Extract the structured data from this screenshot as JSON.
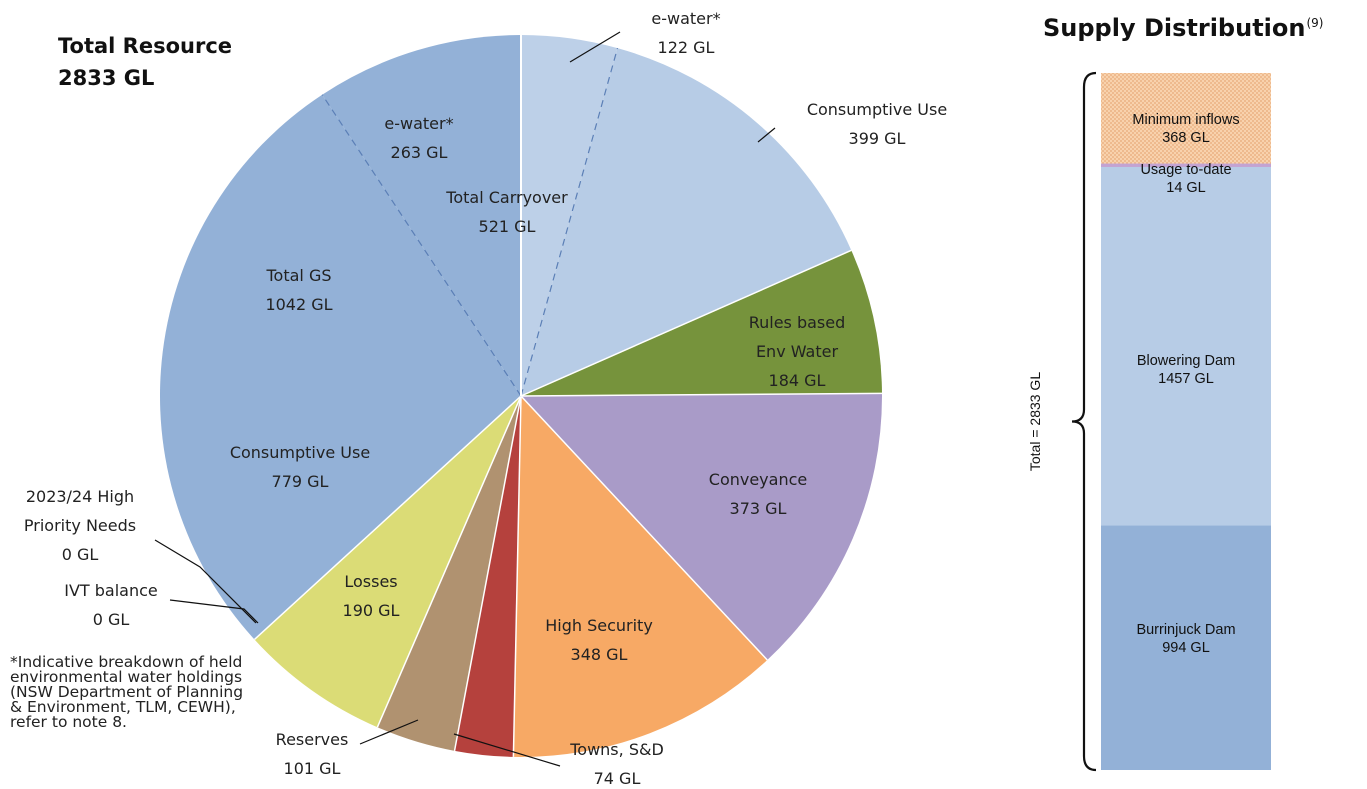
{
  "total_resource": {
    "line1": "Total Resource",
    "line2": "2833 GL"
  },
  "supply": {
    "title": "Supply Distribution",
    "note": "(9)",
    "total_label": "Total = 2833 GL"
  },
  "footnote": "*Indicative breakdown of held environmental water holdings (NSW Department of Planning & Environment, TLM, CEWH), refer to note 8.",
  "chart_data": [
    {
      "type": "pie",
      "title": "Total Resource 2833 GL",
      "unit": "GL",
      "slices": [
        {
          "name": "e-water*",
          "value": 122,
          "label_lines": [
            "e-water*",
            "122 GL"
          ],
          "color": "#bdd0e8"
        },
        {
          "name": "Consumptive Use",
          "value": 399,
          "label_lines": [
            "Consumptive Use",
            "399 GL"
          ],
          "color": "#b7cce6"
        },
        {
          "name": "Rules based Env Water",
          "value": 184,
          "label_lines": [
            "Rules based",
            "Env Water",
            "184 GL"
          ],
          "color": "#76933c"
        },
        {
          "name": "Conveyance",
          "value": 373,
          "label_lines": [
            "Conveyance",
            "373 GL"
          ],
          "color": "#a99bc8"
        },
        {
          "name": "High Security",
          "value": 348,
          "label_lines": [
            "High Security",
            "348 GL"
          ],
          "color": "#f7a965"
        },
        {
          "name": "Towns, S&D",
          "value": 74,
          "label_lines": [
            "Towns, S&D",
            "74 GL"
          ],
          "color": "#b5413d"
        },
        {
          "name": "Reserves",
          "value": 101,
          "label_lines": [
            "Reserves",
            "101 GL"
          ],
          "color": "#b09270"
        },
        {
          "name": "Losses",
          "value": 190,
          "label_lines": [
            "Losses",
            "190 GL"
          ],
          "color": "#dbdc76"
        },
        {
          "name": "IVT balance",
          "value": 0,
          "label_lines": [
            "IVT balance",
            "0 GL"
          ],
          "color": "#93b1d7"
        },
        {
          "name": "2023/24 High Priority Needs",
          "value": 0,
          "label_lines": [
            "2023/24 High",
            "Priority Needs",
            "0 GL"
          ],
          "color": "#93b1d7"
        },
        {
          "name": "Consumptive Use",
          "value": 779,
          "label_lines": [
            "Consumptive Use",
            "779 GL"
          ],
          "color": "#93b1d7"
        },
        {
          "name": "e-water*",
          "value": 263,
          "label_lines": [
            "e-water*",
            "263 GL"
          ],
          "color": "#93b1d7"
        }
      ],
      "group_labels": [
        {
          "label_lines": [
            "Total Carryover",
            "521 GL"
          ]
        },
        {
          "label_lines": [
            "Total GS",
            "1042 GL"
          ]
        }
      ]
    },
    {
      "type": "bar",
      "stacked": true,
      "title": "Supply Distribution",
      "unit": "GL",
      "total": 2833,
      "segments": [
        {
          "name": "Burrinjuck Dam",
          "value": 994,
          "label_lines": [
            "Burrinjuck Dam",
            "994 GL"
          ],
          "color": "#93b1d7"
        },
        {
          "name": "Blowering Dam",
          "value": 1457,
          "label_lines": [
            "Blowering  Dam",
            "1457 GL"
          ],
          "color": "#b7cce6"
        },
        {
          "name": "Usage to-date",
          "value": 14,
          "label_lines": [
            "Usage to-date",
            "14 GL"
          ],
          "color": "#c3a3d2"
        },
        {
          "name": "Minimum inflows",
          "value": 368,
          "label_lines": [
            "Minimum inflows",
            "368 GL"
          ],
          "color": "#f8d2ad"
        }
      ]
    }
  ]
}
